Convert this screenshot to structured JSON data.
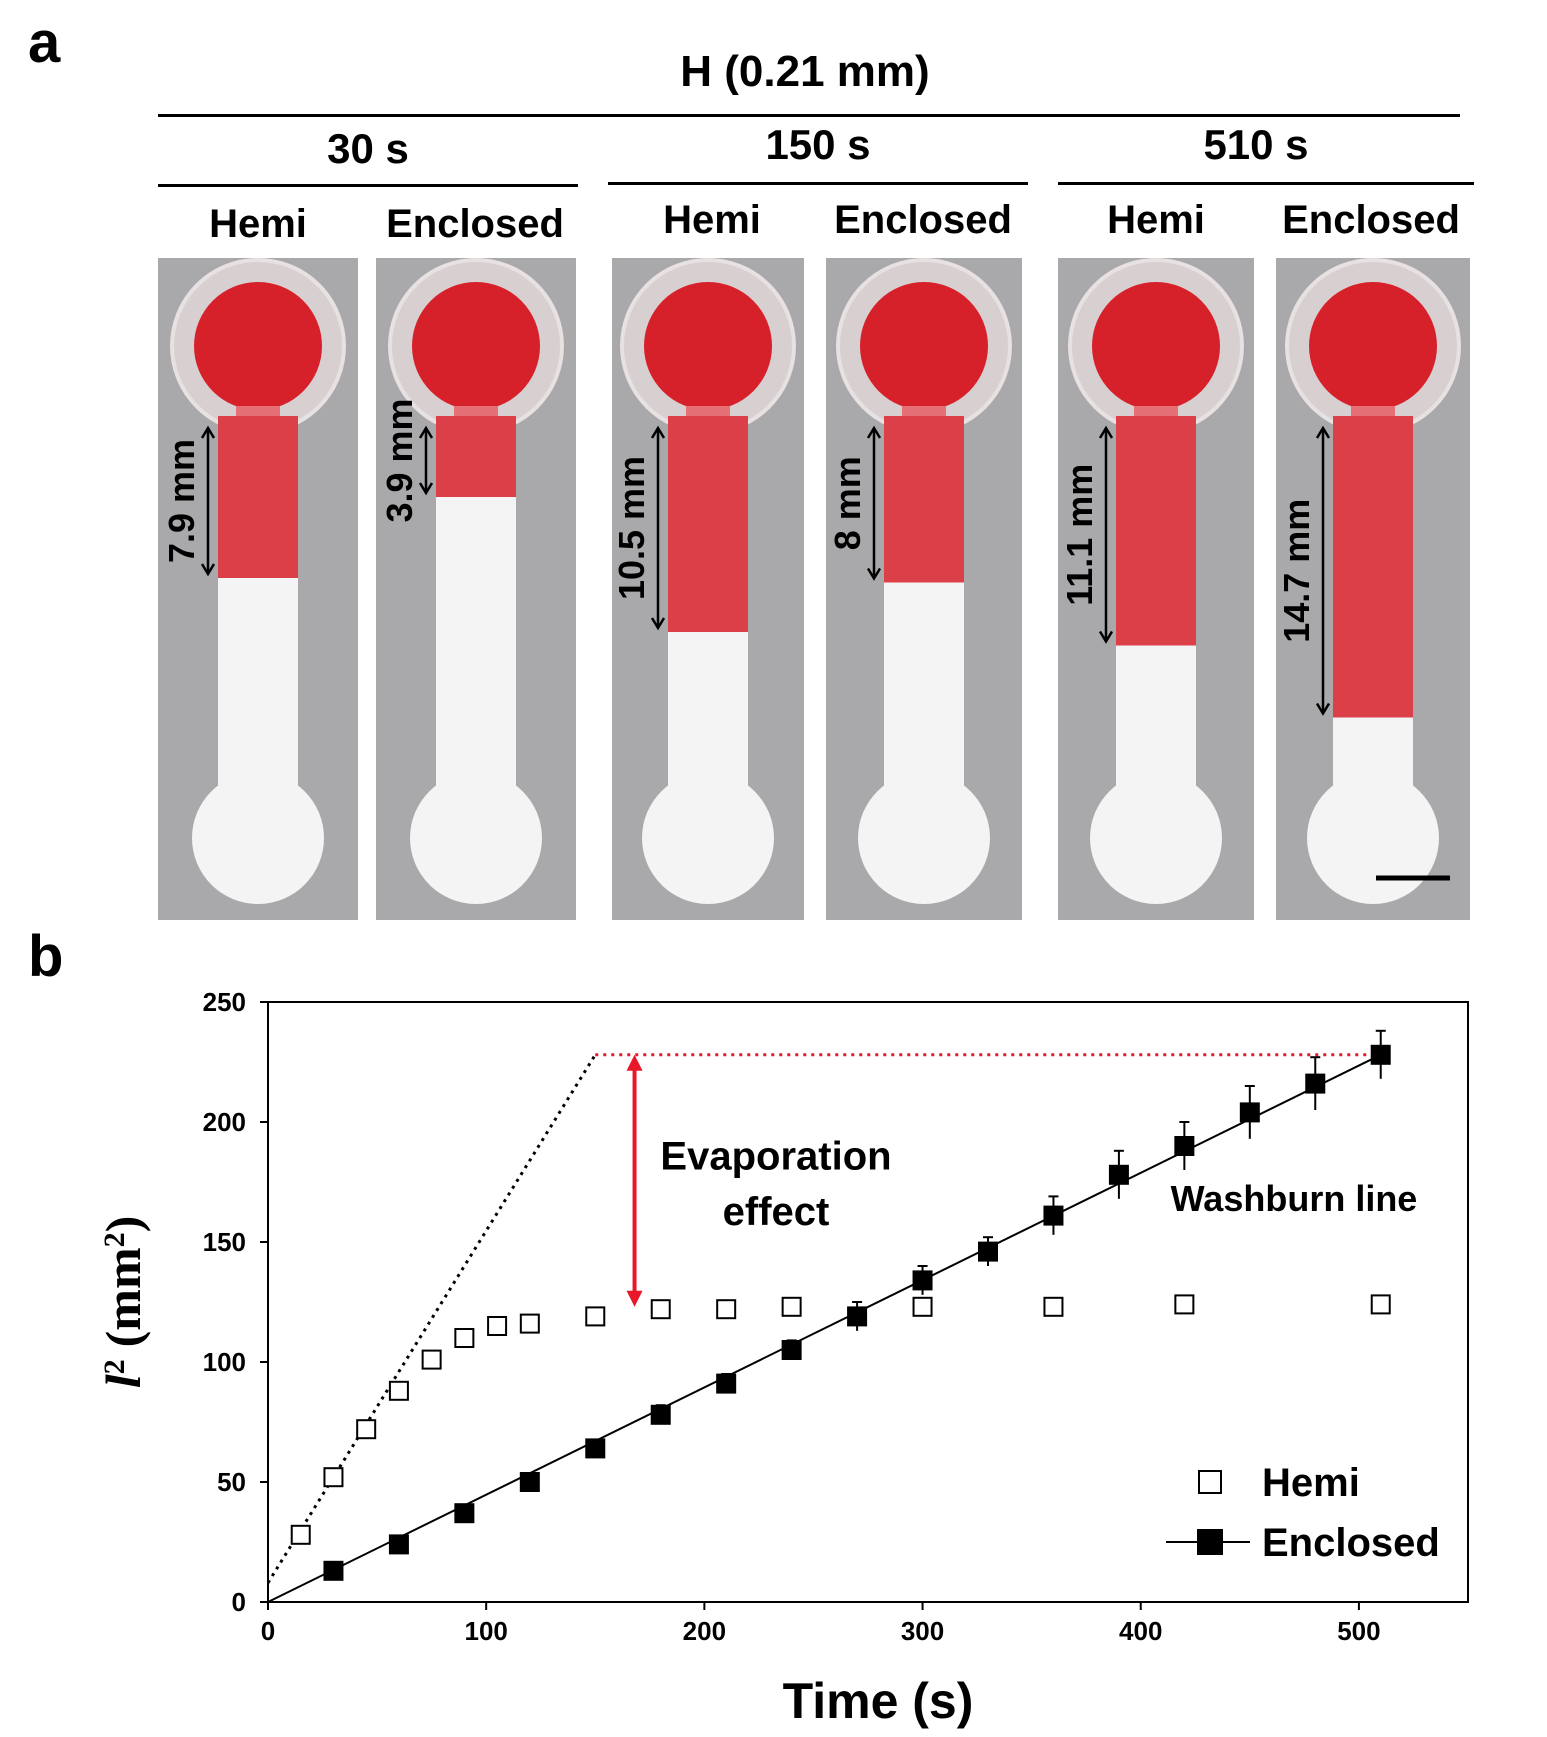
{
  "panel_a": {
    "label": "a",
    "condition": "H (0.21 mm)",
    "groups": [
      {
        "time": "30 s",
        "strips": [
          {
            "label": "Hemi",
            "measure": "7.9 mm",
            "fill_fraction": 0.36
          },
          {
            "label": "Enclosed",
            "measure": "3.9 mm",
            "fill_fraction": 0.18
          }
        ]
      },
      {
        "time": "150 s",
        "strips": [
          {
            "label": "Hemi",
            "measure": "10.5 mm",
            "fill_fraction": 0.48
          },
          {
            "label": "Enclosed",
            "measure": "8 mm",
            "fill_fraction": 0.37
          }
        ]
      },
      {
        "time": "510 s",
        "strips": [
          {
            "label": "Hemi",
            "measure": "11.1 mm",
            "fill_fraction": 0.51
          },
          {
            "label": "Enclosed",
            "measure": "14.7 mm",
            "fill_fraction": 0.67
          }
        ]
      }
    ],
    "colors": {
      "dye": "#d6202a",
      "background": "#a9a9ab",
      "paper": "#f4f4f4"
    }
  },
  "panel_b": {
    "label": "b",
    "chart_data": {
      "type": "scatter",
      "xlabel": "Time (s)",
      "ylabel_symbol": "l",
      "ylabel_sup": "2",
      "ylabel_unit": "(mm",
      "ylabel_unit_sup": "2",
      "ylabel_close": ")",
      "xlim": [
        0,
        550
      ],
      "ylim": [
        0,
        250
      ],
      "x_ticks": [
        0,
        100,
        200,
        300,
        400,
        500
      ],
      "y_ticks": [
        0,
        50,
        100,
        150,
        200,
        250
      ],
      "grid": false,
      "legend_position": "bottom-right",
      "series": [
        {
          "name": "Hemi",
          "marker": "open-square",
          "points": [
            {
              "x": 15,
              "y": 28,
              "err": 2
            },
            {
              "x": 30,
              "y": 52,
              "err": 3
            },
            {
              "x": 45,
              "y": 72,
              "err": 3
            },
            {
              "x": 60,
              "y": 88,
              "err": 2
            },
            {
              "x": 75,
              "y": 101,
              "err": 3
            },
            {
              "x": 90,
              "y": 110,
              "err": 2
            },
            {
              "x": 105,
              "y": 115,
              "err": 2
            },
            {
              "x": 120,
              "y": 116,
              "err": 2
            },
            {
              "x": 150,
              "y": 119,
              "err": 2
            },
            {
              "x": 180,
              "y": 122,
              "err": 1
            },
            {
              "x": 210,
              "y": 122,
              "err": 1
            },
            {
              "x": 240,
              "y": 123,
              "err": 1
            },
            {
              "x": 300,
              "y": 123,
              "err": 1
            },
            {
              "x": 360,
              "y": 123,
              "err": 1
            },
            {
              "x": 420,
              "y": 124,
              "err": 1
            },
            {
              "x": 510,
              "y": 124,
              "err": 1
            }
          ]
        },
        {
          "name": "Enclosed",
          "marker": "filled-square",
          "points": [
            {
              "x": 30,
              "y": 13,
              "err": 1
            },
            {
              "x": 60,
              "y": 24,
              "err": 1
            },
            {
              "x": 90,
              "y": 37,
              "err": 1
            },
            {
              "x": 120,
              "y": 50,
              "err": 1
            },
            {
              "x": 150,
              "y": 64,
              "err": 3
            },
            {
              "x": 180,
              "y": 78,
              "err": 4
            },
            {
              "x": 210,
              "y": 91,
              "err": 4
            },
            {
              "x": 240,
              "y": 105,
              "err": 4
            },
            {
              "x": 270,
              "y": 119,
              "err": 6
            },
            {
              "x": 300,
              "y": 134,
              "err": 6
            },
            {
              "x": 330,
              "y": 146,
              "err": 6
            },
            {
              "x": 360,
              "y": 161,
              "err": 8
            },
            {
              "x": 390,
              "y": 178,
              "err": 10
            },
            {
              "x": 420,
              "y": 190,
              "err": 10
            },
            {
              "x": 450,
              "y": 204,
              "err": 11
            },
            {
              "x": 480,
              "y": 216,
              "err": 11
            },
            {
              "x": 510,
              "y": 228,
              "err": 10
            }
          ]
        }
      ],
      "lines": [
        {
          "name": "Washburn line",
          "style": "solid",
          "color": "#000000",
          "from": [
            0,
            0
          ],
          "to": [
            510,
            228
          ]
        },
        {
          "style": "dotted",
          "color": "#000000",
          "from": [
            0,
            8
          ],
          "to": [
            150,
            228
          ]
        },
        {
          "style": "dotted",
          "color": "#e8182a",
          "from": [
            150,
            228
          ],
          "to": [
            510,
            228
          ]
        }
      ],
      "arrow": {
        "color": "#e8182a",
        "x": 168,
        "y_from": 228,
        "y_to": 123
      },
      "annotations": {
        "evaporation_line1": "Evaporation",
        "evaporation_line2": "effect",
        "washburn": "Washburn line"
      },
      "legend": [
        {
          "label": "Hemi"
        },
        {
          "label": "Enclosed"
        }
      ]
    }
  }
}
